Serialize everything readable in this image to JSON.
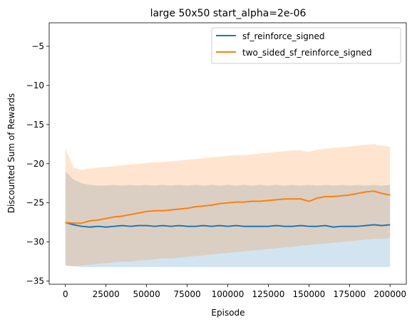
{
  "chart_data": {
    "type": "line",
    "title": "large 50x50 start_alpha=2e-06",
    "xlabel": "Episode",
    "ylabel": "Discounted Sum of Rewards",
    "xlim": [
      -10000,
      210000
    ],
    "ylim": [
      -35.4,
      -2.0
    ],
    "xticks": [
      0,
      25000,
      50000,
      75000,
      100000,
      125000,
      150000,
      175000,
      200000
    ],
    "xtick_labels": [
      "0",
      "25000",
      "50000",
      "75000",
      "100000",
      "125000",
      "150000",
      "175000",
      "200000"
    ],
    "yticks": [
      -35,
      -30,
      -25,
      -20,
      -15,
      -10,
      -5
    ],
    "ytick_labels": [
      "−35",
      "−30",
      "−25",
      "−20",
      "−15",
      "−10",
      "−5"
    ],
    "legend_position": "upper-right",
    "grid": false,
    "series": [
      {
        "name": "sf_reinforce_signed",
        "color": "#1f77b4",
        "x": [
          0,
          5000,
          10000,
          15000,
          20000,
          25000,
          30000,
          35000,
          40000,
          45000,
          50000,
          55000,
          60000,
          65000,
          70000,
          75000,
          80000,
          85000,
          90000,
          95000,
          100000,
          105000,
          110000,
          115000,
          120000,
          125000,
          130000,
          135000,
          140000,
          145000,
          150000,
          155000,
          160000,
          165000,
          170000,
          175000,
          180000,
          185000,
          190000,
          195000,
          200000
        ],
        "mean": [
          -27.5,
          -27.8,
          -28.0,
          -28.1,
          -28.0,
          -28.1,
          -28.0,
          -27.9,
          -28.0,
          -27.9,
          -27.9,
          -28.0,
          -27.9,
          -28.0,
          -27.9,
          -28.0,
          -28.0,
          -27.9,
          -28.0,
          -27.9,
          -28.0,
          -27.9,
          -28.0,
          -28.0,
          -28.0,
          -28.0,
          -27.9,
          -28.0,
          -28.0,
          -27.9,
          -28.0,
          -28.0,
          -27.9,
          -28.1,
          -28.0,
          -28.0,
          -28.0,
          -27.9,
          -27.8,
          -27.9,
          -27.8
        ],
        "lower": [
          -33.0,
          -33.1,
          -33.2,
          -33.2,
          -33.2,
          -33.2,
          -33.2,
          -33.2,
          -33.2,
          -33.2,
          -33.2,
          -33.2,
          -33.2,
          -33.2,
          -33.2,
          -33.2,
          -33.2,
          -33.2,
          -33.2,
          -33.2,
          -33.2,
          -33.2,
          -33.2,
          -33.2,
          -33.2,
          -33.2,
          -33.2,
          -33.2,
          -33.2,
          -33.2,
          -33.2,
          -33.2,
          -33.2,
          -33.2,
          -33.2,
          -33.2,
          -33.2,
          -33.2,
          -33.2,
          -33.2,
          -33.2
        ],
        "upper": [
          -21.0,
          -22.0,
          -22.5,
          -22.7,
          -22.8,
          -22.8,
          -22.7,
          -22.8,
          -22.7,
          -22.8,
          -22.7,
          -22.8,
          -22.7,
          -22.8,
          -22.7,
          -22.8,
          -22.7,
          -22.8,
          -22.7,
          -22.8,
          -22.7,
          -22.8,
          -22.7,
          -22.8,
          -22.7,
          -22.8,
          -22.7,
          -22.8,
          -22.7,
          -22.8,
          -22.7,
          -22.8,
          -22.7,
          -22.8,
          -22.7,
          -22.8,
          -22.7,
          -22.8,
          -22.7,
          -22.8,
          -22.7
        ]
      },
      {
        "name": "two_sided_sf_reinforce_signed",
        "color": "#ff7f0e",
        "x": [
          0,
          5000,
          10000,
          15000,
          20000,
          25000,
          30000,
          35000,
          40000,
          45000,
          50000,
          55000,
          60000,
          65000,
          70000,
          75000,
          80000,
          85000,
          90000,
          95000,
          100000,
          105000,
          110000,
          115000,
          120000,
          125000,
          130000,
          135000,
          140000,
          145000,
          150000,
          155000,
          160000,
          165000,
          170000,
          175000,
          180000,
          185000,
          190000,
          195000,
          200000
        ],
        "mean": [
          -27.5,
          -27.6,
          -27.6,
          -27.3,
          -27.2,
          -27.0,
          -26.8,
          -26.7,
          -26.5,
          -26.3,
          -26.1,
          -26.0,
          -26.0,
          -25.9,
          -25.8,
          -25.7,
          -25.5,
          -25.4,
          -25.3,
          -25.1,
          -25.0,
          -24.9,
          -24.9,
          -24.8,
          -24.8,
          -24.7,
          -24.6,
          -24.5,
          -24.5,
          -24.5,
          -24.8,
          -24.4,
          -24.2,
          -24.2,
          -24.1,
          -24.0,
          -23.8,
          -23.6,
          -23.5,
          -23.8,
          -24.0
        ],
        "lower": [
          -33.0,
          -33.1,
          -33.0,
          -32.9,
          -32.8,
          -32.7,
          -32.6,
          -32.5,
          -32.5,
          -32.4,
          -32.3,
          -32.2,
          -32.1,
          -32.1,
          -32.0,
          -31.9,
          -31.8,
          -31.7,
          -31.6,
          -31.5,
          -31.4,
          -31.3,
          -31.2,
          -31.1,
          -31.0,
          -30.9,
          -30.8,
          -30.7,
          -30.6,
          -30.5,
          -30.4,
          -30.3,
          -30.2,
          -30.1,
          -30.0,
          -29.9,
          -29.8,
          -29.7,
          -29.6,
          -29.6,
          -29.5
        ],
        "upper": [
          -18.0,
          -20.5,
          -20.8,
          -20.6,
          -20.5,
          -20.4,
          -20.3,
          -20.2,
          -20.1,
          -20.0,
          -19.9,
          -19.8,
          -19.8,
          -19.7,
          -19.6,
          -19.5,
          -19.4,
          -19.3,
          -19.2,
          -19.1,
          -19.0,
          -18.9,
          -18.9,
          -18.8,
          -18.7,
          -18.6,
          -18.5,
          -18.4,
          -18.3,
          -18.3,
          -18.5,
          -18.2,
          -18.1,
          -18.0,
          -17.9,
          -17.8,
          -17.7,
          -17.6,
          -17.5,
          -17.7,
          -17.8
        ]
      }
    ]
  }
}
